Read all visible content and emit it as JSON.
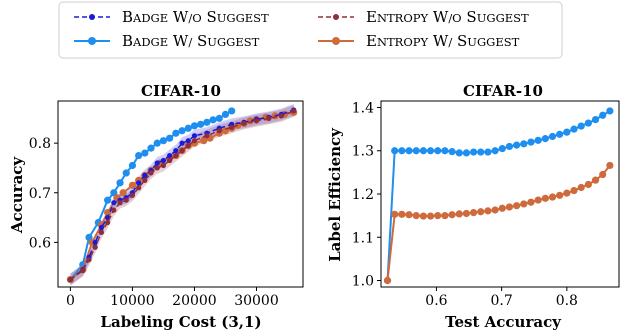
{
  "legend": {
    "items": [
      {
        "label": "Badge w/o Suggest",
        "color": "#1a1adb",
        "dashed": true,
        "marker": "small"
      },
      {
        "label": "Entropy w/o Suggest",
        "color": "#8e2e3c",
        "dashed": true,
        "marker": "small"
      },
      {
        "label": "Badge w/ Suggest",
        "color": "#1e8ff0",
        "dashed": false,
        "marker": "large"
      },
      {
        "label": "Entropy w/ Suggest",
        "color": "#cf6a3c",
        "dashed": false,
        "marker": "large"
      }
    ]
  },
  "chart_data": [
    {
      "type": "line",
      "title": "CIFAR-10",
      "xlabel": "Labeling Cost (3,1)",
      "ylabel": "Accuracy",
      "xlim": [
        -2000,
        37500
      ],
      "ylim": [
        0.51,
        0.885
      ],
      "xticks": [
        0,
        10000,
        20000,
        30000
      ],
      "xtick_labels": [
        "0",
        "10000",
        "20000",
        "30000"
      ],
      "yticks": [
        0.6,
        0.7,
        0.8
      ],
      "ytick_labels": [
        "0.6",
        "0.7",
        "0.8"
      ],
      "grid": false,
      "series": [
        {
          "name": "Badge w/o Suggest",
          "color": "#1a1adb",
          "dashed": true,
          "marker": "small",
          "x": [
            0,
            2000,
            3000,
            4000,
            5000,
            6000,
            7000,
            8000,
            9000,
            10000,
            11000,
            12000,
            13000,
            14000,
            15000,
            16000,
            17000,
            18000,
            19000,
            20000,
            22000,
            24000,
            26000,
            28000,
            30000,
            32000,
            34000,
            36000
          ],
          "y": [
            0.525,
            0.545,
            0.57,
            0.6,
            0.63,
            0.65,
            0.68,
            0.685,
            0.69,
            0.7,
            0.72,
            0.735,
            0.745,
            0.76,
            0.765,
            0.775,
            0.785,
            0.8,
            0.805,
            0.815,
            0.82,
            0.83,
            0.838,
            0.842,
            0.848,
            0.852,
            0.858,
            0.867
          ]
        },
        {
          "name": "Entropy w/o Suggest",
          "color": "#8e2e3c",
          "dashed": true,
          "marker": "small",
          "x": [
            0,
            2000,
            3000,
            4000,
            5000,
            6000,
            7000,
            8000,
            9000,
            10000,
            11000,
            12000,
            13000,
            14000,
            15000,
            16000,
            17000,
            18000,
            19000,
            20000,
            22000,
            24000,
            26000,
            28000,
            30000,
            32000,
            34000,
            36000
          ],
          "y": [
            0.525,
            0.543,
            0.565,
            0.59,
            0.62,
            0.64,
            0.665,
            0.68,
            0.685,
            0.695,
            0.71,
            0.725,
            0.74,
            0.75,
            0.755,
            0.765,
            0.775,
            0.785,
            0.795,
            0.805,
            0.815,
            0.825,
            0.832,
            0.84,
            0.845,
            0.85,
            0.855,
            0.865
          ]
        },
        {
          "name": "Badge w/ Suggest",
          "color": "#1e8ff0",
          "dashed": false,
          "marker": "large",
          "x": [
            0,
            2000,
            3000,
            4500,
            6000,
            7000,
            8000,
            9000,
            10000,
            11000,
            12000,
            13000,
            14000,
            15000,
            16000,
            17000,
            18000,
            19000,
            20000,
            21000,
            22000,
            23000,
            24000,
            25000,
            26000
          ],
          "y": [
            0.525,
            0.555,
            0.61,
            0.64,
            0.685,
            0.7,
            0.72,
            0.74,
            0.755,
            0.775,
            0.78,
            0.79,
            0.8,
            0.805,
            0.81,
            0.82,
            0.825,
            0.83,
            0.835,
            0.838,
            0.842,
            0.847,
            0.85,
            0.858,
            0.865
          ]
        },
        {
          "name": "Entropy w/ Suggest",
          "color": "#cf6a3c",
          "dashed": false,
          "marker": "large",
          "x": [
            0,
            2000,
            3500,
            5000,
            6000,
            7500,
            8500,
            10000,
            11000,
            12000,
            13000,
            14500,
            16000,
            17000,
            18000,
            19000,
            20000,
            21500,
            22500,
            24000,
            25000,
            26000,
            27000,
            28000,
            29000,
            30000,
            31500,
            33000,
            34500,
            36000
          ],
          "y": [
            0.525,
            0.545,
            0.6,
            0.635,
            0.66,
            0.69,
            0.7,
            0.715,
            0.725,
            0.735,
            0.745,
            0.76,
            0.77,
            0.775,
            0.785,
            0.795,
            0.8,
            0.805,
            0.81,
            0.82,
            0.825,
            0.83,
            0.836,
            0.84,
            0.845,
            0.848,
            0.852,
            0.855,
            0.858,
            0.862
          ]
        }
      ]
    },
    {
      "type": "line",
      "title": "CIFAR-10",
      "xlabel": "Test Accuracy",
      "ylabel": "Label Efficiency",
      "xlim": [
        0.515,
        0.88
      ],
      "ylim": [
        0.985,
        1.415
      ],
      "xticks": [
        0.6,
        0.7,
        0.8
      ],
      "xtick_labels": [
        "0.6",
        "0.7",
        "0.8"
      ],
      "yticks": [
        1.0,
        1.1,
        1.2,
        1.3,
        1.4
      ],
      "ytick_labels": [
        "1.0",
        "1.1",
        "1.2",
        "1.3",
        "1.4"
      ],
      "grid": false,
      "series": [
        {
          "name": "Badge",
          "color": "#1e8ff0",
          "marker": "large",
          "x": [
            0.525,
            0.536,
            0.547,
            0.558,
            0.569,
            0.58,
            0.591,
            0.602,
            0.613,
            0.624,
            0.635,
            0.646,
            0.657,
            0.668,
            0.679,
            0.69,
            0.701,
            0.712,
            0.723,
            0.734,
            0.745,
            0.756,
            0.767,
            0.778,
            0.789,
            0.8,
            0.811,
            0.822,
            0.833,
            0.844,
            0.855,
            0.866
          ],
          "y": [
            1.0,
            1.3,
            1.3,
            1.3,
            1.3,
            1.3,
            1.3,
            1.3,
            1.3,
            1.298,
            1.295,
            1.295,
            1.297,
            1.297,
            1.297,
            1.3,
            1.305,
            1.31,
            1.313,
            1.316,
            1.32,
            1.324,
            1.328,
            1.333,
            1.338,
            1.343,
            1.35,
            1.357,
            1.364,
            1.372,
            1.382,
            1.392
          ]
        },
        {
          "name": "Entropy",
          "color": "#cf6a3c",
          "marker": "large",
          "x": [
            0.525,
            0.536,
            0.547,
            0.558,
            0.569,
            0.58,
            0.591,
            0.602,
            0.613,
            0.624,
            0.635,
            0.646,
            0.657,
            0.668,
            0.679,
            0.69,
            0.701,
            0.712,
            0.723,
            0.734,
            0.745,
            0.756,
            0.767,
            0.778,
            0.789,
            0.8,
            0.811,
            0.822,
            0.833,
            0.844,
            0.855,
            0.866
          ],
          "y": [
            1.0,
            1.153,
            1.153,
            1.152,
            1.15,
            1.149,
            1.149,
            1.15,
            1.15,
            1.152,
            1.154,
            1.155,
            1.157,
            1.159,
            1.161,
            1.163,
            1.167,
            1.17,
            1.173,
            1.177,
            1.181,
            1.186,
            1.19,
            1.193,
            1.197,
            1.202,
            1.208,
            1.215,
            1.222,
            1.232,
            1.245,
            1.266
          ]
        }
      ]
    }
  ]
}
